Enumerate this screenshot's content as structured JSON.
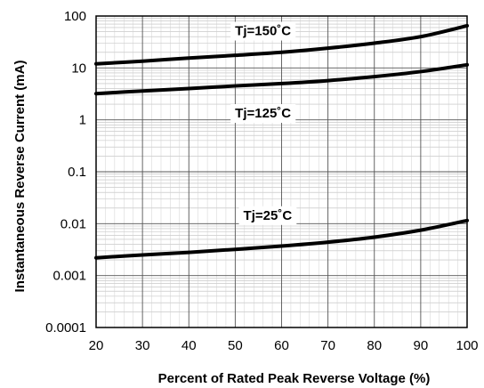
{
  "chart_data": {
    "type": "line",
    "title": "",
    "xlabel": "Percent of Rated Peak Reverse Voltage (%)",
    "ylabel": "Instantaneous Reverse Current (mA)",
    "xlim": [
      20,
      100
    ],
    "ylim": [
      0.0001,
      100
    ],
    "yscale": "log",
    "grid": true,
    "x_ticks": [
      20,
      30,
      40,
      50,
      60,
      70,
      80,
      90,
      100
    ],
    "x_tick_labels": [
      "20",
      "30",
      "40",
      "50",
      "60",
      "70",
      "80",
      "90",
      "100"
    ],
    "y_ticks": [
      0.0001,
      0.001,
      0.01,
      0.1,
      1,
      10,
      100
    ],
    "y_tick_labels": [
      "0.0001",
      "0.001",
      "0.01",
      "0.1",
      "1",
      "10",
      "100"
    ],
    "series": [
      {
        "name": "Tj=150˚C",
        "x": [
          20,
          30,
          40,
          50,
          60,
          70,
          80,
          90,
          100
        ],
        "y": [
          12,
          13.5,
          15.5,
          17.5,
          20,
          24,
          30,
          40,
          65
        ],
        "label_at": [
          56,
          50
        ]
      },
      {
        "name": "Tj=125˚C",
        "x": [
          20,
          30,
          40,
          50,
          60,
          70,
          80,
          90,
          100
        ],
        "y": [
          3.2,
          3.6,
          4.0,
          4.5,
          5.0,
          5.7,
          6.8,
          8.5,
          11.5
        ],
        "label_at": [
          56,
          1.3
        ]
      },
      {
        "name": "Tj=25˚C",
        "x": [
          20,
          30,
          40,
          50,
          60,
          70,
          80,
          90,
          100
        ],
        "y": [
          0.0022,
          0.0025,
          0.0028,
          0.0032,
          0.0037,
          0.0044,
          0.0055,
          0.0075,
          0.0115
        ],
        "label_at": [
          57,
          0.014
        ]
      }
    ]
  }
}
